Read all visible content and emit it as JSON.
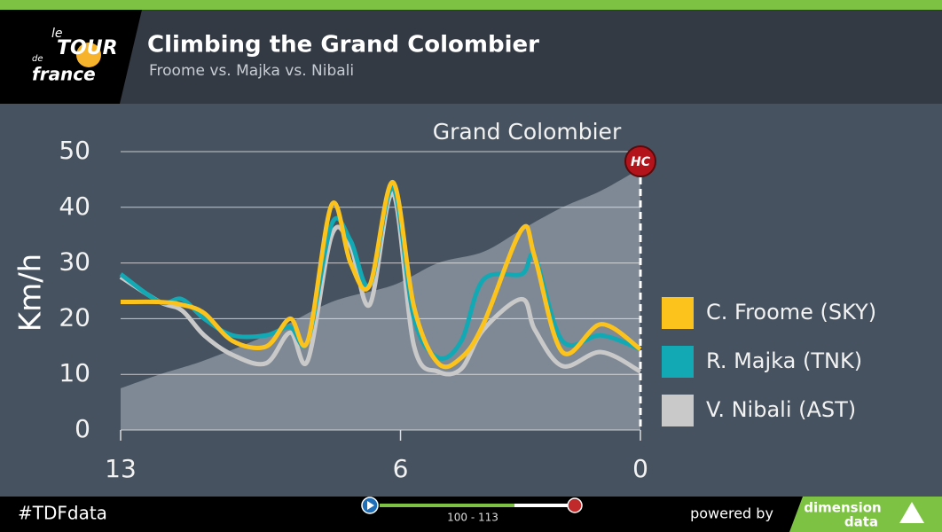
{
  "header": {
    "title": "Climbing the Grand Colombier",
    "subtitle": "Froome vs. Majka vs. Nibali",
    "logo": [
      "le",
      "TOUR",
      "de",
      "france"
    ]
  },
  "chart_data": {
    "type": "line",
    "y_label": "Km/h",
    "annotation": "Grand Colombier",
    "badge": "HC",
    "x": [
      13,
      12.02,
      11.47,
      10.91,
      10.2,
      9.36,
      8.76,
      8.32,
      7.72,
      7.25,
      6.77,
      6.19,
      5.66,
      5.06,
      4.48,
      3.93,
      2.97,
      2.64,
      1.95,
      0.98,
      0
    ],
    "series": [
      {
        "name": "C. Froome (SKY)",
        "color": "#fbc31c",
        "values": [
          23,
          23,
          22.5,
          21,
          16,
          15,
          20,
          16,
          40.5,
          30,
          26,
          44.5,
          22,
          12,
          13,
          19,
          36,
          31,
          14,
          19,
          14.5
        ]
      },
      {
        "name": "R. Majka (TNK)",
        "color": "#12a9b5",
        "values": [
          28,
          23,
          23.5,
          20,
          17,
          17,
          18.5,
          16,
          37,
          34,
          26,
          43.5,
          20,
          13,
          16,
          27,
          28,
          31,
          16,
          17,
          14.5
        ]
      },
      {
        "name": "V. Nibali (AST)",
        "color": "#c9c9c9",
        "values": [
          27.5,
          23,
          21.5,
          17,
          13.5,
          12,
          17.5,
          12.5,
          35,
          33,
          22.5,
          42.5,
          15,
          10.5,
          11,
          18,
          23.5,
          18,
          11.5,
          14,
          10.5
        ]
      }
    ],
    "profile": {
      "color": "#7f8995",
      "x": [
        13,
        12.02,
        10.91,
        9.36,
        7.72,
        6.19,
        5.06,
        3.93,
        2.97,
        1.95,
        0.98,
        0
      ],
      "values": [
        7.5,
        10,
        12.5,
        17,
        23,
        26,
        30,
        32,
        36,
        40,
        43,
        47
      ]
    },
    "xlim": [
      13,
      0
    ],
    "xticks": [
      13,
      6,
      0
    ],
    "ylim": [
      0,
      50
    ],
    "yticks": [
      0,
      10,
      20,
      30,
      40,
      50
    ],
    "grid": true,
    "legend": "right"
  },
  "footer": {
    "hashtag": "#TDFdata",
    "progress": "100 - 113",
    "powered": "powered by",
    "brand": [
      "dimension",
      "data"
    ]
  }
}
